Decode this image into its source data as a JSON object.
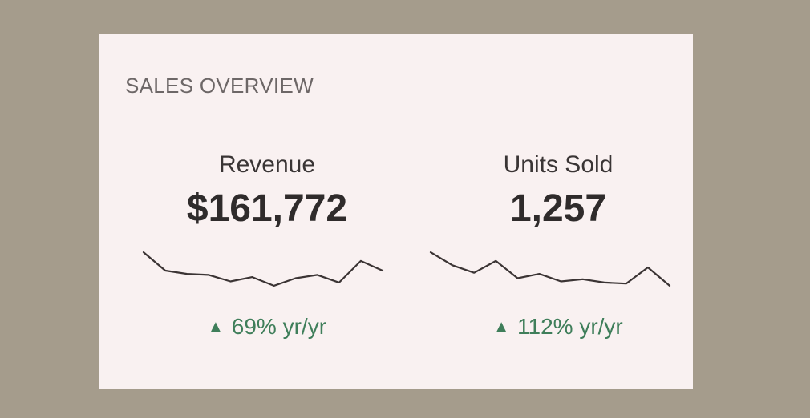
{
  "card": {
    "title": "SALES OVERVIEW"
  },
  "colors": {
    "background": "#a59c8c",
    "card": "#f9f1f1",
    "positive": "#3f7e5a",
    "line": "#3b3434"
  },
  "icons": {
    "delta": "up-triangle-icon"
  },
  "chart_data": [
    {
      "type": "line",
      "label": "Revenue",
      "value": "$161,772",
      "delta": {
        "arrow": "▲",
        "text": "69% yr/yr"
      },
      "values": [
        62,
        45,
        42,
        41,
        35,
        39,
        31,
        38,
        41,
        34,
        54,
        45
      ]
    },
    {
      "type": "line",
      "label": "Units Sold",
      "value": "1,257",
      "delta": {
        "arrow": "▲",
        "text": "112% yr/yr"
      },
      "values": [
        62,
        50,
        43,
        54,
        38,
        42,
        35,
        37,
        34,
        33,
        48,
        31
      ]
    }
  ]
}
